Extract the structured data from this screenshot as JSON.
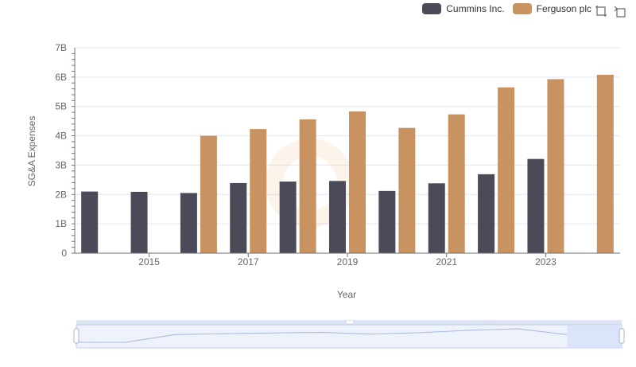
{
  "chart_data": {
    "type": "bar",
    "xlabel": "Year",
    "ylabel": "SG&A Expenses",
    "ylim": [
      0,
      7000000000
    ],
    "y_ticks": [
      {
        "value": 0,
        "label": "0"
      },
      {
        "value": 1000000000,
        "label": "1B"
      },
      {
        "value": 2000000000,
        "label": "2B"
      },
      {
        "value": 3000000000,
        "label": "3B"
      },
      {
        "value": 4000000000,
        "label": "4B"
      },
      {
        "value": 5000000000,
        "label": "5B"
      },
      {
        "value": 6000000000,
        "label": "6B"
      },
      {
        "value": 7000000000,
        "label": "7B"
      }
    ],
    "categories": [
      "2014",
      "2015",
      "2016",
      "2017",
      "2018",
      "2019",
      "2020",
      "2021",
      "2022",
      "2023",
      "2024"
    ],
    "x_tick_labels": [
      "2015",
      "2017",
      "2019",
      "2021",
      "2023"
    ],
    "grid": true,
    "legend_position": "top-right",
    "series": [
      {
        "name": "Cummins Inc.",
        "color": "#4a4a58",
        "values": [
          2100000000,
          2090000000,
          2050000000,
          2390000000,
          2440000000,
          2460000000,
          2120000000,
          2380000000,
          2690000000,
          3210000000,
          null
        ]
      },
      {
        "name": "Ferguson plc",
        "color": "#c89360",
        "values": [
          null,
          null,
          4000000000,
          4230000000,
          4560000000,
          4830000000,
          4270000000,
          4730000000,
          5650000000,
          5930000000,
          6080000000
        ]
      }
    ]
  },
  "colors": {
    "grid": "#e3e6f0",
    "axis": "#6e7079",
    "zoom_fill": "#d6e0f7",
    "zoom_border": "#c4cde3",
    "zoom_handle": "#a7b7cc"
  },
  "icons": {
    "zoom": "zoom-icon",
    "reset": "restore-icon"
  }
}
